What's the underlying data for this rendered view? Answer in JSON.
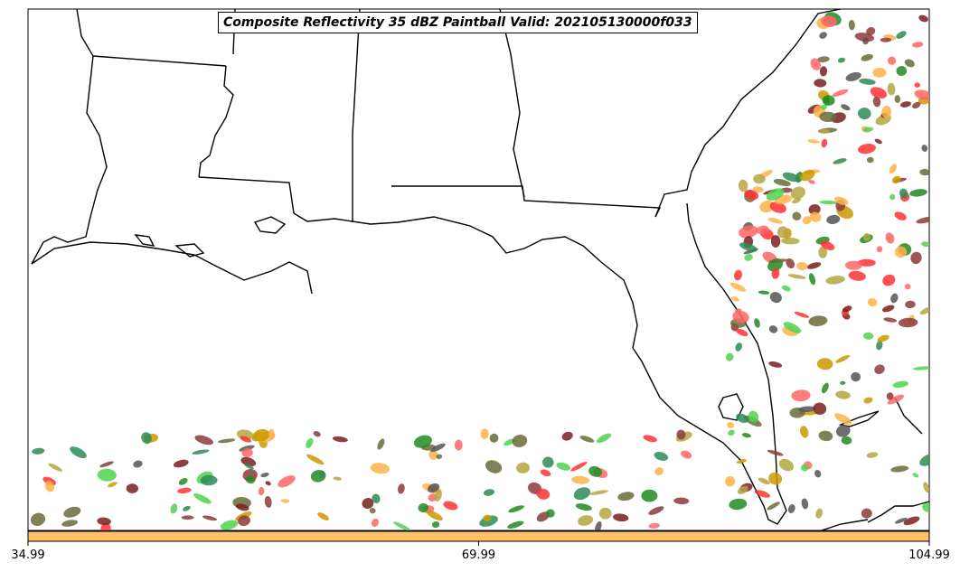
{
  "title": "Composite Reflectivity 35 dBZ Paintball Valid: 202105130000f033",
  "colorbar": {
    "ticks": [
      "34.99",
      "69.99",
      "104.99"
    ],
    "fill_color": "#ffc266"
  },
  "colors": {
    "land_line": "#000000",
    "background": "#ffffff",
    "members": [
      "#ff6666",
      "#ffb347",
      "#b5a642",
      "#4fd44f",
      "#8b3a3a",
      "#2e8b57",
      "#6b6b3a",
      "#555555",
      "#ff3333",
      "#228b22",
      "#cc9900",
      "#7a1f1f"
    ]
  }
}
